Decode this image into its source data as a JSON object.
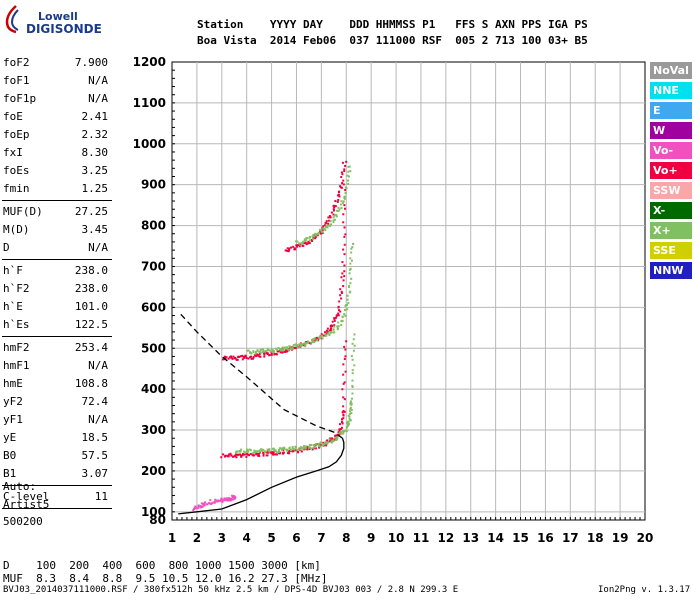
{
  "logo": {
    "line1": "Lowell",
    "line2": "DIGISONDE"
  },
  "header": {
    "row1": "Station    YYYY DAY    DDD HHMMSS P1   FFS S AXN PPS IGA PS",
    "row2": "Boa Vista  2014 Feb06  037 111000 RSF  005 2 713 100 03+ B5"
  },
  "params": {
    "group1": [
      {
        "key": "foF2",
        "val": "7.900"
      },
      {
        "key": "foF1",
        "val": "N/A"
      },
      {
        "key": "foF1p",
        "val": "N/A"
      },
      {
        "key": "foE",
        "val": "2.41"
      },
      {
        "key": "foEp",
        "val": "2.32"
      },
      {
        "key": "fxI",
        "val": "8.30"
      },
      {
        "key": "foEs",
        "val": "3.25"
      },
      {
        "key": "fmin",
        "val": "1.25"
      }
    ],
    "group2": [
      {
        "key": "MUF(D)",
        "val": "27.25"
      },
      {
        "key": "M(D)",
        "val": "3.45"
      },
      {
        "key": "D",
        "val": "N/A"
      }
    ],
    "group3": [
      {
        "key": "h`F",
        "val": "238.0"
      },
      {
        "key": "h`F2",
        "val": "238.0"
      },
      {
        "key": "h`E",
        "val": "101.0"
      },
      {
        "key": "h`Es",
        "val": "122.5"
      }
    ],
    "group4": [
      {
        "key": "hmF2",
        "val": "253.4"
      },
      {
        "key": "hmF1",
        "val": "N/A"
      },
      {
        "key": "hmE",
        "val": "108.8"
      },
      {
        "key": "yF2",
        "val": "72.4"
      },
      {
        "key": "yF1",
        "val": "N/A"
      },
      {
        "key": "yE",
        "val": "18.5"
      },
      {
        "key": "B0",
        "val": "57.5"
      },
      {
        "key": "B1",
        "val": "3.07"
      }
    ],
    "group5": [
      {
        "key": "C-level",
        "val": "11"
      }
    ]
  },
  "autoscale": {
    "line1": "Auto:",
    "line2": "Artist5",
    "line3": "500200"
  },
  "legend": [
    {
      "label": "NoVal",
      "color": "#9a9a9a"
    },
    {
      "label": "NNE",
      "color": "#00e0f0"
    },
    {
      "label": "E",
      "color": "#40a8f0"
    },
    {
      "label": "W",
      "color": "#a000a0"
    },
    {
      "label": "Vo-",
      "color": "#f050c0"
    },
    {
      "label": "Vo+",
      "color": "#f00040"
    },
    {
      "label": "SSW",
      "color": "#f8a8a8"
    },
    {
      "label": "X-",
      "color": "#006a00"
    },
    {
      "label": "X+",
      "color": "#80c060"
    },
    {
      "label": "SSE",
      "color": "#d0d000"
    },
    {
      "label": "NNW",
      "color": "#2020c0"
    }
  ],
  "muf_table": {
    "row1": "D    100  200  400  600  800 1000 1500 3000 [km]",
    "row2": "MUF  8.3  8.4  8.8  9.5 10.5 12.0 16.2 27.3 [MHz]"
  },
  "footer": {
    "left": "BVJ03_2014037111000.RSF / 380fx512h 50 kHz 2.5 km / DPS-4D BVJ03 003 / 2.8 N 299.3 E",
    "right": "Ion2Png v. 1.3.17"
  },
  "chart_data": {
    "type": "scatter",
    "xlim": [
      1,
      20
    ],
    "ylim": [
      80,
      1200
    ],
    "x_ticks": [
      1,
      2,
      3,
      4,
      5,
      6,
      7,
      8,
      9,
      10,
      11,
      12,
      13,
      14,
      15,
      16,
      17,
      18,
      19,
      20
    ],
    "y_ticks": [
      80,
      100,
      200,
      300,
      400,
      500,
      600,
      700,
      800,
      900,
      1000,
      1100,
      1200
    ],
    "grid": true,
    "series": [
      {
        "name": "Vo+",
        "color": "#f00040",
        "traces": [
          {
            "x": [
              3.0,
              3.5,
              4.0,
              4.5,
              5.0,
              5.5,
              6.0,
              6.5,
              7.0,
              7.4,
              7.7,
              7.85,
              7.9
            ],
            "y": [
              240,
              240,
              241,
              243,
              246,
              249,
              253,
              258,
              266,
              278,
              300,
              350,
              520
            ]
          },
          {
            "x": [
              3.0,
              3.5,
              4.0,
              4.5,
              5.0,
              5.5,
              6.0,
              6.5,
              7.0,
              7.4,
              7.7,
              7.85,
              7.9
            ],
            "y": [
              478,
              478,
              480,
              484,
              490,
              497,
              506,
              517,
              532,
              556,
              600,
              700,
              900
            ]
          },
          {
            "x": [
              5.5,
              6.0,
              6.5,
              7.0,
              7.4,
              7.7,
              7.9
            ],
            "y": [
              740,
              750,
              765,
              790,
              830,
              880,
              960
            ]
          }
        ]
      },
      {
        "name": "X+",
        "color": "#80c060",
        "traces": [
          {
            "x": [
              3.5,
              4.0,
              4.5,
              5.0,
              5.5,
              6.0,
              6.5,
              7.0,
              7.5,
              7.9,
              8.1,
              8.2,
              8.25
            ],
            "y": [
              250,
              250,
              251,
              252,
              255,
              258,
              262,
              268,
              280,
              300,
              330,
              380,
              540
            ]
          },
          {
            "x": [
              4.0,
              4.5,
              5.0,
              5.5,
              6.0,
              6.5,
              7.0,
              7.5,
              7.9,
              8.1,
              8.2
            ],
            "y": [
              494,
              495,
              497,
              502,
              508,
              517,
              530,
              548,
              580,
              640,
              760
            ]
          },
          {
            "x": [
              6.0,
              6.5,
              7.0,
              7.5,
              7.9,
              8.1
            ],
            "y": [
              760,
              770,
              790,
              820,
              870,
              950
            ]
          }
        ]
      },
      {
        "name": "Vo-",
        "color": "#f050c0",
        "traces": [
          {
            "x": [
              1.8,
              2.2,
              2.6,
              3.0,
              3.3,
              3.5
            ],
            "y": [
              110,
              120,
              128,
              130,
              135,
              140
            ]
          }
        ]
      }
    ],
    "model_profile": {
      "x": [
        1.25,
        2.0,
        3.0,
        4.0,
        5.0,
        6.0,
        6.8,
        7.3,
        7.6,
        7.8,
        7.9,
        7.9,
        7.85,
        7.5,
        6.8,
        5.5,
        4.0,
        3.0,
        2.0,
        1.25
      ],
      "y": [
        95,
        100,
        107,
        130,
        160,
        185,
        200,
        210,
        222,
        238,
        255,
        270,
        280,
        295,
        310,
        350,
        430,
        480,
        540,
        590
      ]
    }
  }
}
